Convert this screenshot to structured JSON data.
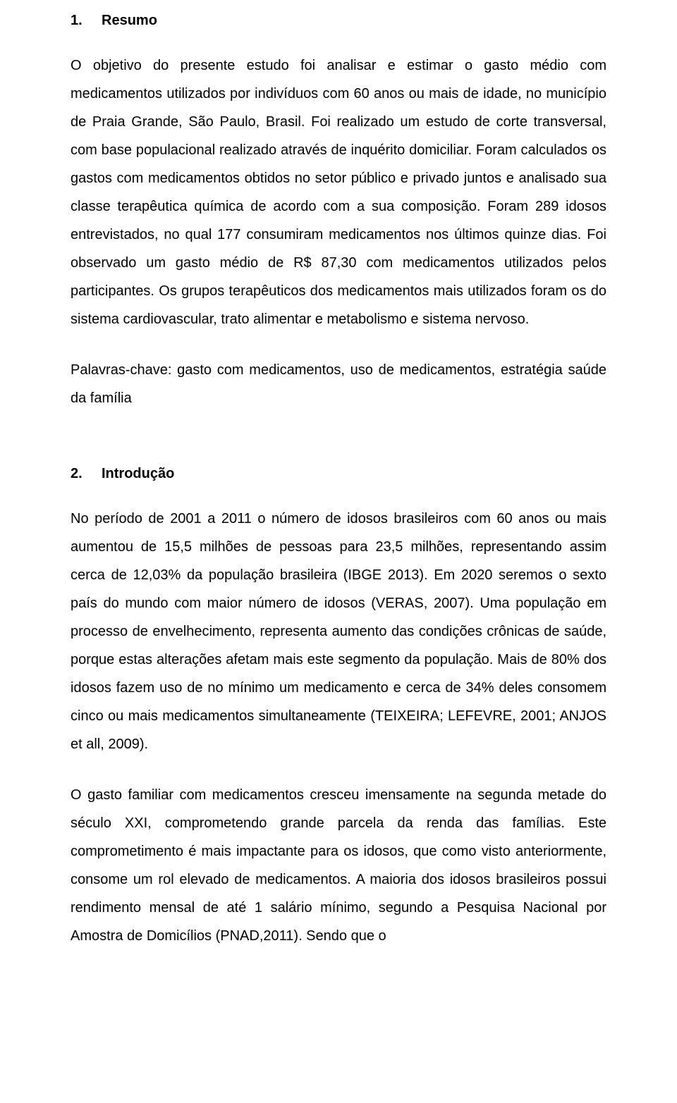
{
  "section1": {
    "number": "1.",
    "title": "Resumo",
    "para1": "O objetivo do presente estudo foi analisar e estimar o gasto médio com medicamentos utilizados por indivíduos com 60 anos ou mais de idade, no município de Praia Grande, São Paulo, Brasil. Foi realizado um estudo de corte transversal, com base populacional realizado através de inquérito domiciliar. Foram calculados os gastos com medicamentos obtidos no setor público e privado juntos e analisado sua classe terapêutica química de acordo com a sua composição. Foram 289 idosos entrevistados, no qual 177 consumiram medicamentos nos últimos quinze dias. Foi observado um gasto médio de R$ 87,30 com medicamentos utilizados pelos participantes. Os grupos terapêuticos dos medicamentos mais utilizados foram os do sistema cardiovascular, trato alimentar e metabolismo e sistema nervoso.",
    "para2": "Palavras-chave: gasto com medicamentos, uso de medicamentos, estratégia saúde da família"
  },
  "section2": {
    "number": "2.",
    "title": "Introdução",
    "para1": "No período de 2001 a 2011 o número de idosos brasileiros com 60 anos ou mais aumentou de 15,5 milhões de pessoas para 23,5 milhões, representando assim cerca de 12,03% da população brasileira (IBGE 2013). Em 2020 seremos o sexto país do mundo com maior número de idosos (VERAS, 2007). Uma população em processo de envelhecimento, representa aumento das condições crônicas de saúde, porque estas alterações afetam mais este segmento da população. Mais de 80% dos idosos fazem uso de no mínimo um medicamento e cerca de 34% deles consomem cinco ou mais medicamentos simultaneamente (TEIXEIRA; LEFEVRE, 2001; ANJOS et all, 2009).",
    "para2": "O gasto familiar com medicamentos cresceu imensamente na segunda metade do século XXI, comprometendo grande parcela da renda das famílias. Este comprometimento é mais impactante para os idosos, que como visto anteriormente, consome um rol elevado de medicamentos. A maioria dos idosos brasileiros possui rendimento mensal de até 1 salário mínimo, segundo a Pesquisa Nacional por Amostra de Domicílios (PNAD,2011). Sendo que o"
  }
}
